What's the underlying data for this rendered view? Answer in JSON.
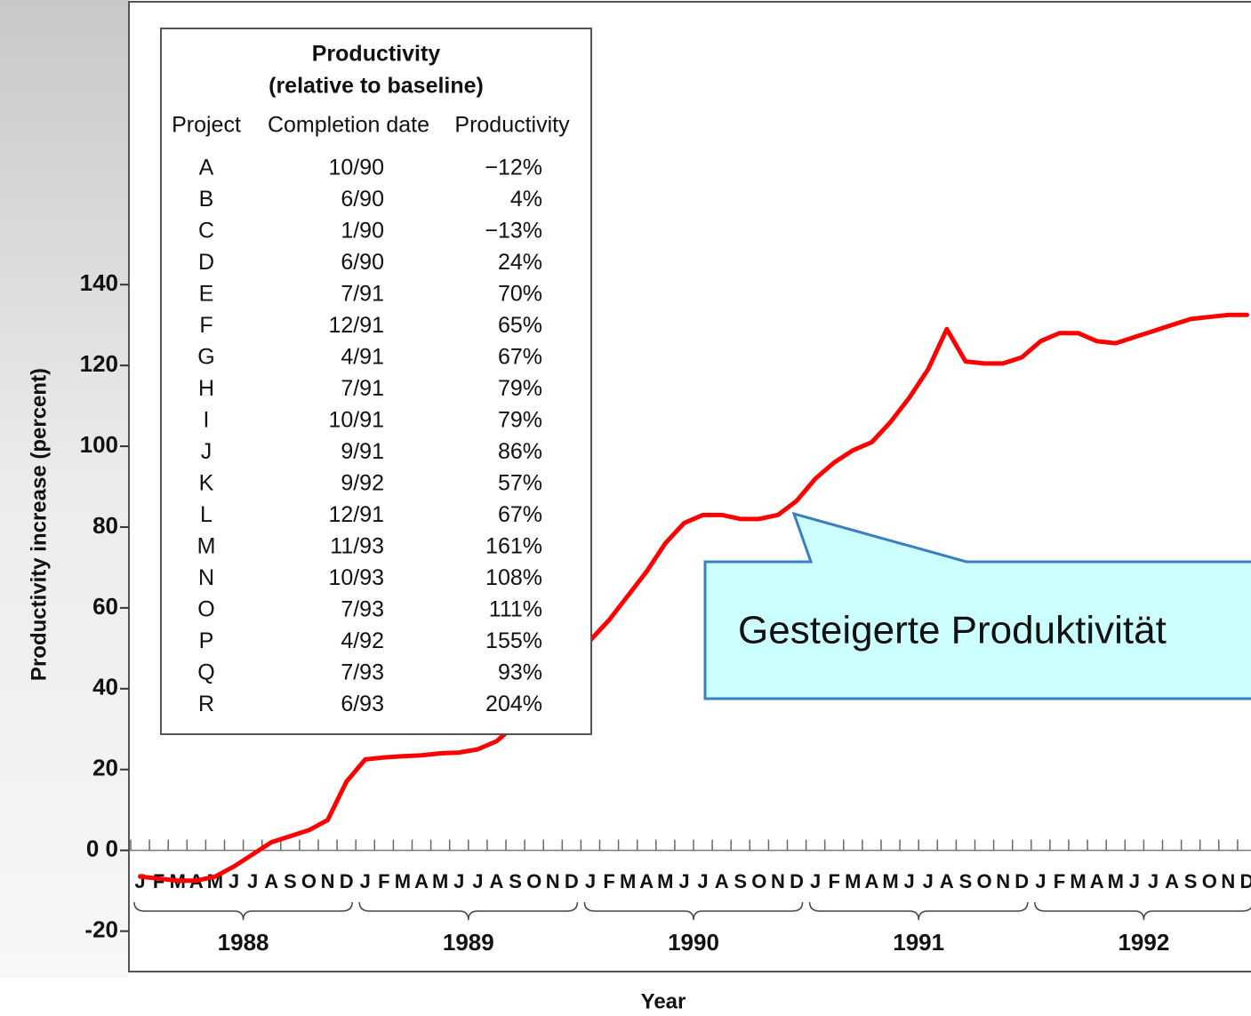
{
  "chart_data": {
    "type": "line",
    "y_label": "Productivity increase (percent)",
    "x_label": "Year",
    "categories": [
      "J",
      "F",
      "M",
      "A",
      "M",
      "J",
      "J",
      "A",
      "S",
      "O",
      "N",
      "D",
      "J",
      "F",
      "M",
      "A",
      "M",
      "J",
      "J",
      "A",
      "S",
      "O",
      "N",
      "D",
      "J",
      "F",
      "M",
      "A",
      "M",
      "J",
      "J",
      "A",
      "S",
      "O",
      "N",
      "D",
      "J",
      "F",
      "M",
      "A",
      "M",
      "J",
      "J",
      "A",
      "S",
      "O",
      "N",
      "D",
      "J",
      "F",
      "M",
      "A",
      "M",
      "J",
      "J",
      "A",
      "S",
      "O",
      "N",
      "D"
    ],
    "year_groups": [
      "1988",
      "1989",
      "1990",
      "1991",
      "1992"
    ],
    "series": [
      {
        "name": "Productivity increase",
        "color": "#ff0000",
        "values": [
          -6.5,
          -7,
          -7.5,
          -7.5,
          -6.5,
          -4,
          -1,
          2,
          3.5,
          5,
          7.5,
          17,
          22.5,
          23,
          23.3,
          23.5,
          24,
          24.2,
          25,
          27,
          31,
          36,
          42,
          47,
          52,
          57,
          63,
          69,
          76,
          81,
          83,
          83,
          82,
          82,
          83,
          86.5,
          92,
          96,
          99,
          101,
          106,
          112,
          119,
          129,
          121,
          120.5,
          120.5,
          122,
          126,
          128,
          128,
          126,
          125.5,
          127,
          128.5,
          130,
          131.5,
          132,
          132.5,
          132.5
        ]
      }
    ],
    "ylim": [
      -30,
      210
    ],
    "yticks": [
      {
        "value": -20,
        "label": "-20"
      },
      {
        "value": 0,
        "label": "0 0"
      },
      20,
      40,
      60,
      80,
      100,
      120,
      140
    ],
    "annotation": "Gesteigerte Produktivität"
  },
  "inset_table": {
    "title": [
      "Productivity",
      "(relative to baseline)"
    ],
    "columns": [
      "Project",
      "Completion date",
      "Productivity"
    ],
    "rows": [
      [
        "A",
        "10/90",
        "−12%"
      ],
      [
        "B",
        "6/90",
        "4%"
      ],
      [
        "C",
        "1/90",
        "−13%"
      ],
      [
        "D",
        "6/90",
        "24%"
      ],
      [
        "E",
        "7/91",
        "70%"
      ],
      [
        "F",
        "12/91",
        "65%"
      ],
      [
        "G",
        "4/91",
        "67%"
      ],
      [
        "H",
        "7/91",
        "79%"
      ],
      [
        "I",
        "10/91",
        "79%"
      ],
      [
        "J",
        "9/91",
        "86%"
      ],
      [
        "K",
        "9/92",
        "57%"
      ],
      [
        "L",
        "12/91",
        "67%"
      ],
      [
        "M",
        "11/93",
        "161%"
      ],
      [
        "N",
        "10/93",
        "108%"
      ],
      [
        "O",
        "7/93",
        "111%"
      ],
      [
        "P",
        "4/92",
        "155%"
      ],
      [
        "Q",
        "7/93",
        "93%"
      ],
      [
        "R",
        "6/93",
        "204%"
      ]
    ]
  }
}
